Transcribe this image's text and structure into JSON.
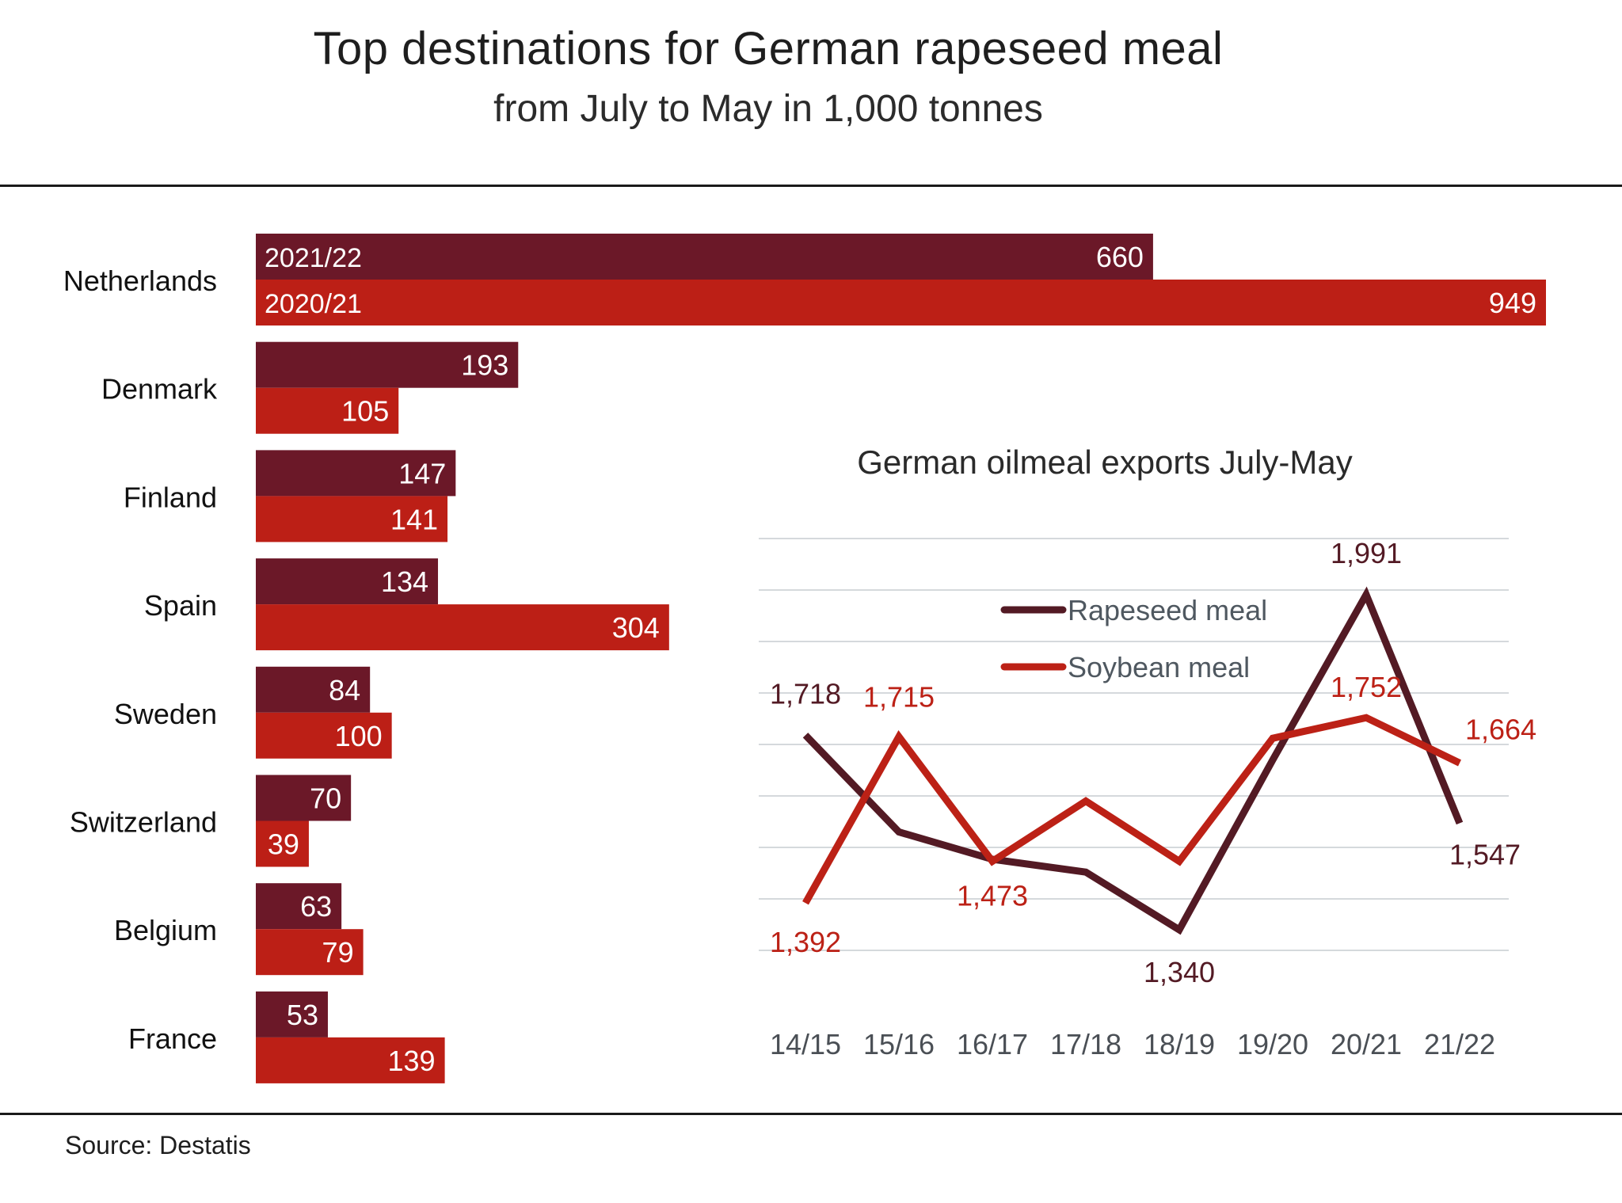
{
  "header": {
    "title": "Top destinations for German rapeseed meal",
    "subtitle": "from July to May in 1,000 tonnes"
  },
  "footer": {
    "source": "Source: Destatis"
  },
  "colors": {
    "series_2021_22": "#6b1828",
    "series_2020_21": "#bc1f16",
    "grid": "#d5d9dc"
  },
  "chart_data": [
    {
      "type": "bar",
      "orientation": "horizontal",
      "title": "Top destinations for German rapeseed meal",
      "subtitle": "from July to May in 1,000 tonnes",
      "categories": [
        "Netherlands",
        "Denmark",
        "Finland",
        "Spain",
        "Sweden",
        "Switzerland",
        "Belgium",
        "France"
      ],
      "series": [
        {
          "name": "2021/22",
          "color": "#6b1828",
          "values": [
            660,
            193,
            147,
            134,
            84,
            70,
            63,
            53
          ]
        },
        {
          "name": "2020/21",
          "color": "#bc1f16",
          "values": [
            949,
            105,
            141,
            304,
            100,
            39,
            79,
            139
          ]
        }
      ],
      "xlim": [
        0,
        949
      ],
      "grid": false,
      "data_labels": true
    },
    {
      "type": "line",
      "title": "German oilmeal exports July-May",
      "x": [
        "14/15",
        "15/16",
        "16/17",
        "17/18",
        "18/19",
        "19/20",
        "20/21",
        "21/22"
      ],
      "series": [
        {
          "name": "Rapeseed meal",
          "color": "#531a24",
          "values": [
            1718,
            1530,
            1477,
            1452,
            1340,
            1670,
            1991,
            1547
          ],
          "labeled": [
            1718,
            null,
            null,
            null,
            1340,
            null,
            1991,
            1547
          ]
        },
        {
          "name": "Soybean meal",
          "color": "#bc2116",
          "values": [
            1392,
            1715,
            1473,
            1590,
            1473,
            1712,
            1752,
            1664
          ],
          "labeled": [
            1392,
            1715,
            1473,
            null,
            null,
            null,
            1752,
            1664
          ]
        }
      ],
      "ylim": [
        1200,
        2100
      ],
      "grid": true,
      "legend": "top-center"
    }
  ]
}
